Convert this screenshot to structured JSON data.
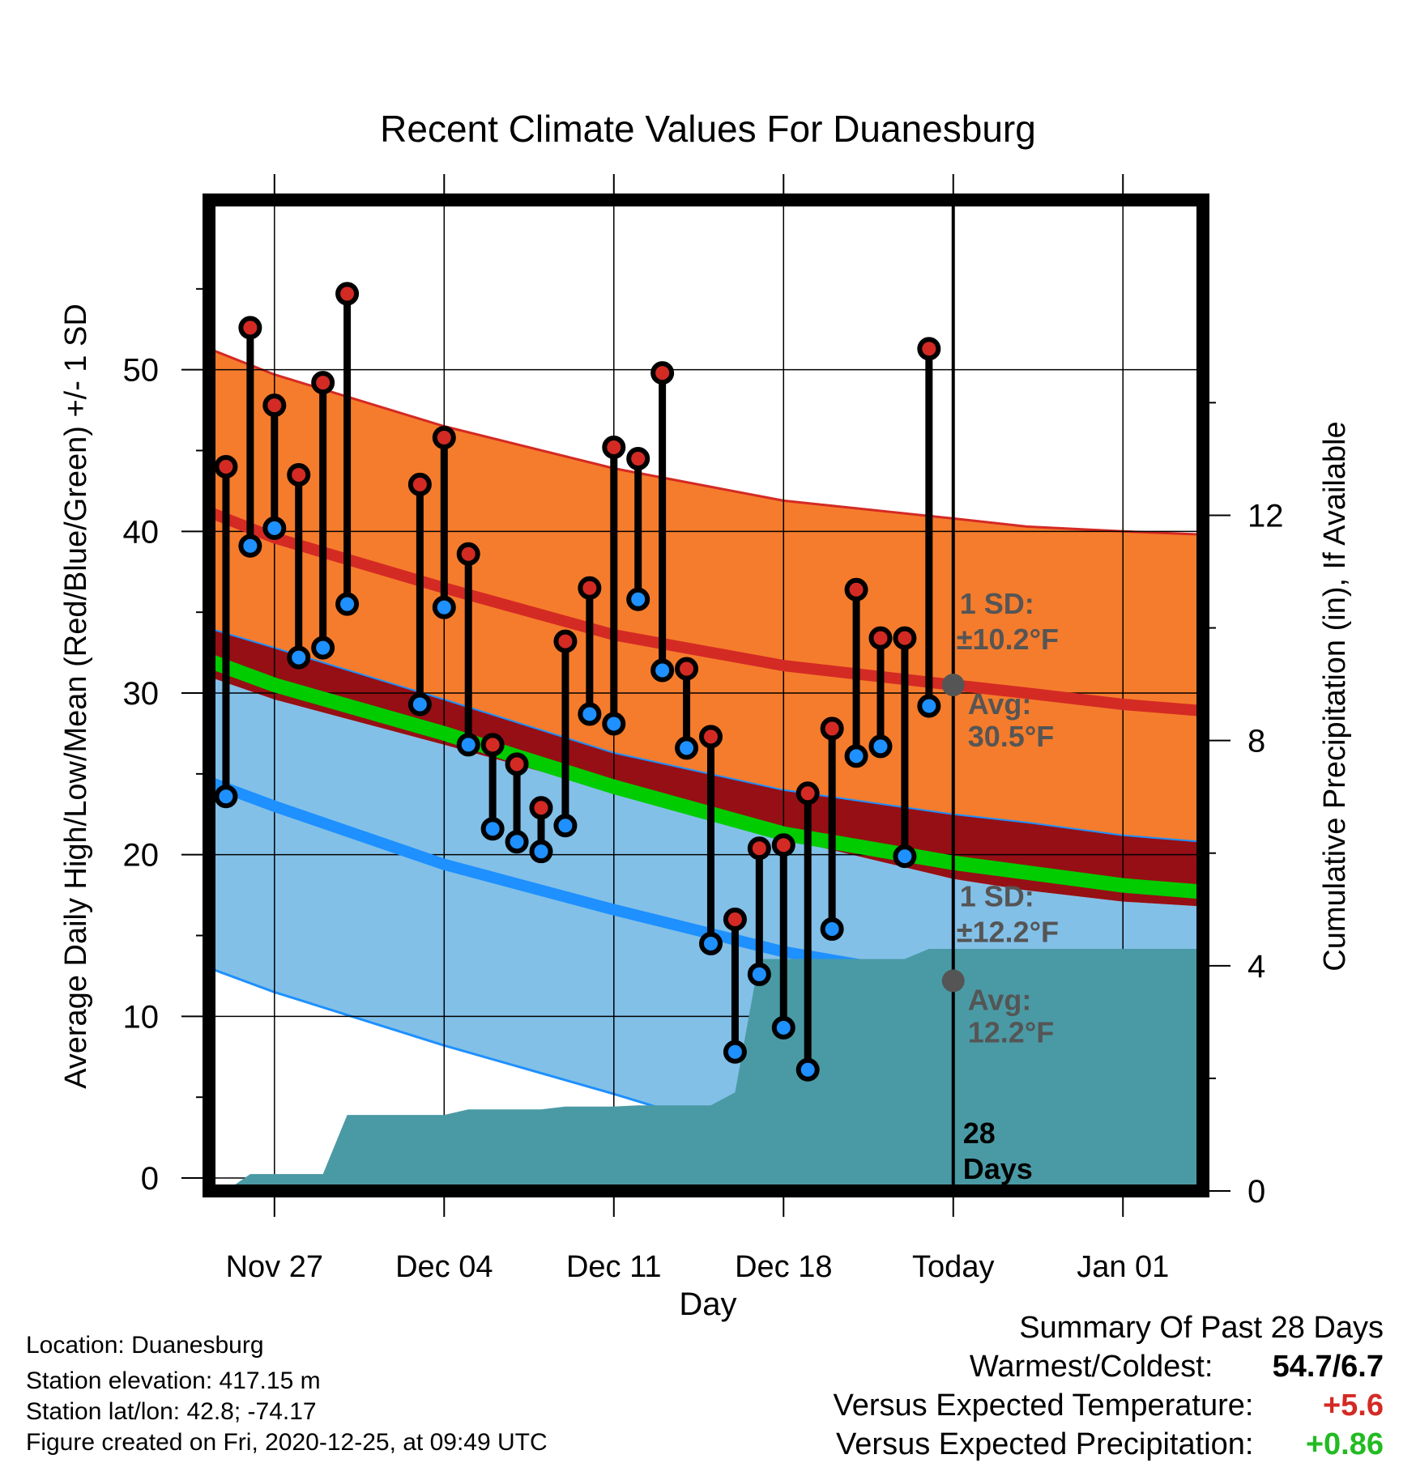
{
  "chart_data": {
    "type": "line",
    "title": "Recent Climate Values For Duanesburg",
    "xlabel": "Day",
    "ylabel_left": "Average Daily High/Low/Mean (Red/Blue/Green) +/- 1 SD",
    "ylabel_right": "Cumulative Precipitation (in), If Available",
    "x_ticks": [
      {
        "day": 0,
        "label": "Nov 27"
      },
      {
        "day": 7,
        "label": "Dec 04"
      },
      {
        "day": 14,
        "label": "Dec 11"
      },
      {
        "day": 21,
        "label": "Dec 18"
      },
      {
        "day": 28,
        "label": "Today"
      },
      {
        "day": 35,
        "label": "Jan 01"
      }
    ],
    "xlim": [
      -2.7,
      38.3
    ],
    "ylim_left": [
      -0.8,
      60.5
    ],
    "ylim_right": [
      0,
      17.6
    ],
    "left_ticks": [
      0,
      10,
      20,
      30,
      40,
      50
    ],
    "right_ticks": [
      0,
      4,
      8,
      12
    ],
    "today_label": [
      "28",
      "Days"
    ],
    "normal_high": {
      "x": [
        -2.7,
        0,
        7,
        14,
        21,
        28,
        31,
        35,
        38.3
      ],
      "mean": [
        41.2,
        39.6,
        36.5,
        33.6,
        31.7,
        30.5,
        30.0,
        29.3,
        28.9
      ],
      "upper": [
        51.3,
        49.7,
        46.5,
        43.9,
        41.9,
        40.8,
        40.3,
        40.0,
        39.8
      ],
      "lower": [
        34.0,
        32.8,
        29.6,
        26.3,
        24.0,
        22.5,
        22.0,
        21.2,
        20.8
      ],
      "sd_label": [
        "1 SD:",
        "±10.2°F"
      ],
      "avg_label": [
        "Avg:",
        "30.5°F"
      ]
    },
    "normal_low": {
      "x": [
        -2.7,
        0,
        7,
        14,
        21,
        28,
        31,
        35,
        38.3
      ],
      "mean": [
        24.5,
        23.0,
        19.4,
        16.6,
        14.0,
        12.2,
        11.4,
        10.4,
        9.7
      ],
      "upper": [
        31.0,
        29.6,
        26.8,
        23.9,
        21.0,
        18.5,
        17.8,
        17.1,
        16.8
      ],
      "lower": [
        13.0,
        11.5,
        8.2,
        5.2,
        2.0,
        -0.8,
        -1.5,
        -2.0,
        -2.5
      ],
      "sd_label": [
        "1 SD:",
        "±12.2°F"
      ],
      "avg_label": [
        "Avg:",
        "12.2°F"
      ]
    },
    "normal_mean": {
      "x": [
        -2.7,
        0,
        7,
        14,
        21,
        28,
        31,
        35,
        38.3
      ],
      "values": [
        32.0,
        30.5,
        27.5,
        24.2,
        21.3,
        19.5,
        18.9,
        18.1,
        17.7
      ]
    },
    "daily": {
      "day": [
        -2,
        -1,
        0,
        1,
        2,
        3,
        6,
        7,
        8,
        9,
        10,
        11,
        12,
        13,
        14,
        15,
        16,
        17,
        18,
        19,
        20,
        21,
        22,
        23,
        24,
        25,
        26,
        27
      ],
      "high": [
        44.0,
        52.6,
        47.8,
        43.5,
        49.2,
        54.7,
        42.9,
        45.8,
        38.6,
        26.8,
        25.6,
        22.9,
        33.2,
        36.5,
        45.2,
        44.5,
        49.8,
        31.5,
        27.3,
        16.0,
        20.4,
        20.6,
        23.8,
        27.8,
        36.4,
        33.4,
        33.4,
        51.3
      ],
      "low": [
        23.6,
        39.1,
        40.2,
        32.2,
        32.8,
        35.5,
        29.3,
        35.3,
        26.8,
        21.6,
        20.8,
        20.2,
        21.8,
        28.7,
        28.1,
        35.8,
        31.4,
        26.6,
        14.5,
        7.8,
        12.6,
        9.3,
        6.7,
        15.4,
        26.1,
        26.7,
        19.9,
        29.2
      ]
    },
    "precip_cumulative": {
      "x": [
        -2,
        -1,
        0,
        1,
        2,
        3,
        7,
        8,
        9,
        10,
        11,
        12,
        13,
        14,
        15,
        16,
        17,
        18,
        19,
        20,
        21,
        22,
        23,
        24,
        25,
        26,
        27,
        38.3
      ],
      "values": [
        0,
        0.3,
        0.3,
        0.3,
        0.3,
        1.35,
        1.35,
        1.45,
        1.45,
        1.45,
        1.45,
        1.5,
        1.5,
        1.5,
        1.52,
        1.52,
        1.52,
        1.52,
        1.75,
        4.12,
        4.12,
        4.12,
        4.12,
        4.12,
        4.12,
        4.12,
        4.3,
        4.3
      ]
    },
    "colors": {
      "high_band": "#f57c2c",
      "overlap_band": "#960f14",
      "low_band": "#82c0e8",
      "high_line": "#d42a24",
      "low_line": "#1e90ff",
      "mean_line": "#00cc00",
      "precip": "#4a9aa5",
      "high_marker": "#d42a24",
      "low_marker": "#1e90ff",
      "label_gray": "#555555"
    }
  },
  "info": {
    "location": "Location: Duanesburg",
    "elevation": "Station elevation: 417.15 m",
    "latlon": "Station lat/lon: 42.8; -74.17",
    "created": "Figure created on Fri, 2020-12-25, at 09:49 UTC"
  },
  "summary": {
    "heading": "Summary Of Past 28 Days",
    "warmest_label": "Warmest/Coldest:",
    "warmest_value": "54.7/6.7",
    "temp_label": "Versus Expected Temperature:",
    "temp_value": "+5.6",
    "temp_color": "#d42a24",
    "precip_label": "Versus Expected Precipitation:",
    "precip_value": "+0.86",
    "precip_color": "#22bb22"
  }
}
